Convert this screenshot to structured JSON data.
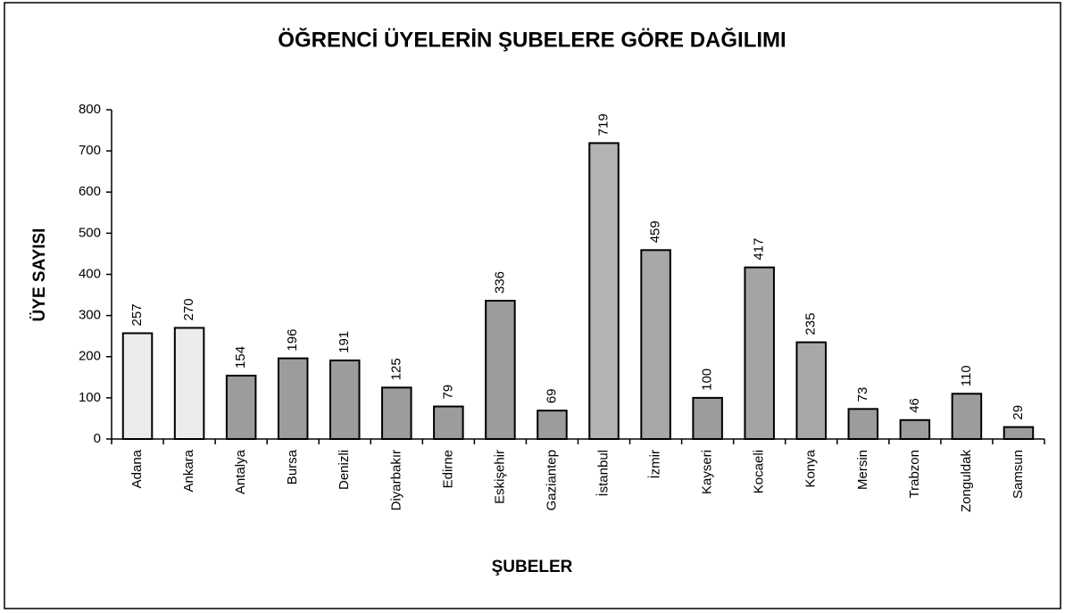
{
  "chart_data": {
    "type": "bar",
    "title": "ÖĞRENCİ ÜYELERİN ŞUBELERE GÖRE DAĞILIMI",
    "x_label": "ŞUBELER",
    "y_label": "ÜYE SAYISI",
    "categories": [
      "Adana",
      "Ankara",
      "Antalya",
      "Bursa",
      "Denizli",
      "Diyarbakır",
      "Edirne",
      "Eskişehir",
      "Gaziantep",
      "İstanbul",
      "İzmir",
      "Kayseri",
      "Kocaeli",
      "Konya",
      "Mersin",
      "Trabzon",
      "Zonguldak",
      "Samsun"
    ],
    "values": [
      257,
      270,
      154,
      196,
      191,
      125,
      79,
      336,
      69,
      719,
      459,
      100,
      417,
      235,
      73,
      46,
      110,
      29
    ],
    "colors": [
      "#ececec",
      "#ececec",
      "#9c9c9c",
      "#9c9c9c",
      "#9c9c9c",
      "#9c9c9c",
      "#9c9c9c",
      "#9c9c9c",
      "#9c9c9c",
      "#b4b4b4",
      "#a8a8a8",
      "#9c9c9c",
      "#a4a4a4",
      "#a8a8a8",
      "#9c9c9c",
      "#9c9c9c",
      "#9c9c9c",
      "#9c9c9c"
    ],
    "ylim": [
      0,
      800
    ],
    "yticks": [
      0,
      100,
      200,
      300,
      400,
      500,
      600,
      700,
      800
    ],
    "grid": false
  }
}
